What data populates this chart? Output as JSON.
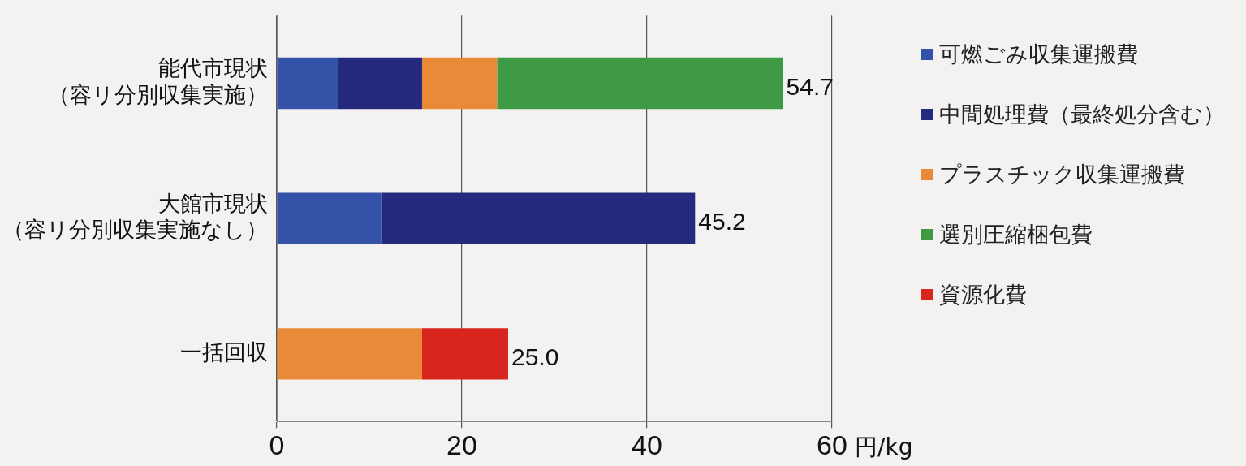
{
  "chart_data": {
    "type": "bar",
    "orientation": "horizontal",
    "stacked": true,
    "categories": [
      "能代市現状（容リ分別収集実施）",
      "大館市現状（容リ分別収集実施なし）",
      "一括回収"
    ],
    "series": [
      {
        "name": "可燃ごみ収集運搬費",
        "color": "#3352a8",
        "values": [
          6.6,
          11.3,
          null
        ]
      },
      {
        "name": "中間処理費（最終処分含む）",
        "color": "#252a7e",
        "values": [
          9.1,
          33.9,
          null
        ]
      },
      {
        "name": "プラスチック収集運搬費",
        "color": "#e98a38",
        "values": [
          8.1,
          null,
          15.7
        ]
      },
      {
        "name": "選別圧縮梱包費",
        "color": "#3f9a45",
        "values": [
          30.9,
          null,
          null
        ]
      },
      {
        "name": "資源化費",
        "color": "#d8261f",
        "values": [
          null,
          null,
          9.3
        ]
      }
    ],
    "totals": [
      "54.7",
      "45.2",
      "25.0"
    ],
    "xlabel": "円/kg",
    "xlim": [
      0,
      60
    ],
    "xticks": [
      0,
      20,
      40,
      60
    ],
    "grid": "x",
    "legend": "right"
  }
}
